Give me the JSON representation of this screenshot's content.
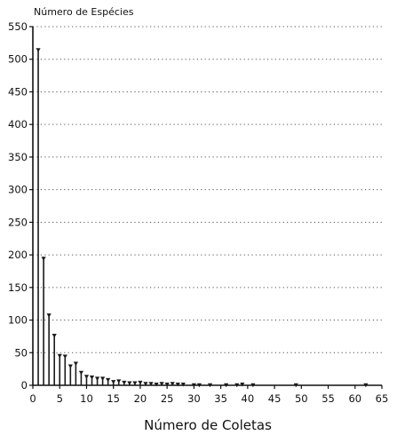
{
  "chart_data": {
    "type": "bar",
    "title": "",
    "ylabel": "Número de Espécies",
    "xlabel": "Número de Coletas",
    "xlim": [
      0,
      65
    ],
    "ylim": [
      0,
      550
    ],
    "xticks": [
      0,
      5,
      10,
      15,
      20,
      25,
      30,
      35,
      40,
      45,
      50,
      55,
      60,
      65
    ],
    "yticks": [
      0,
      50,
      100,
      150,
      200,
      250,
      300,
      350,
      400,
      450,
      500,
      550
    ],
    "grid": "horizontal dotted",
    "legend": "none",
    "x": [
      1,
      2,
      3,
      4,
      5,
      6,
      7,
      8,
      9,
      10,
      11,
      12,
      13,
      14,
      15,
      16,
      17,
      18,
      19,
      20,
      21,
      22,
      23,
      24,
      25,
      26,
      27,
      28,
      30,
      31,
      33,
      36,
      38,
      39,
      41,
      49,
      62
    ],
    "values": [
      515,
      195,
      108,
      77,
      46,
      45,
      30,
      34,
      20,
      14,
      13,
      11,
      11,
      9,
      6,
      7,
      5,
      4,
      4,
      5,
      3,
      3,
      2,
      3,
      2,
      3,
      2,
      2,
      1,
      1,
      1,
      1,
      1,
      2,
      1,
      1,
      1
    ],
    "color": "#1a1a1a"
  }
}
